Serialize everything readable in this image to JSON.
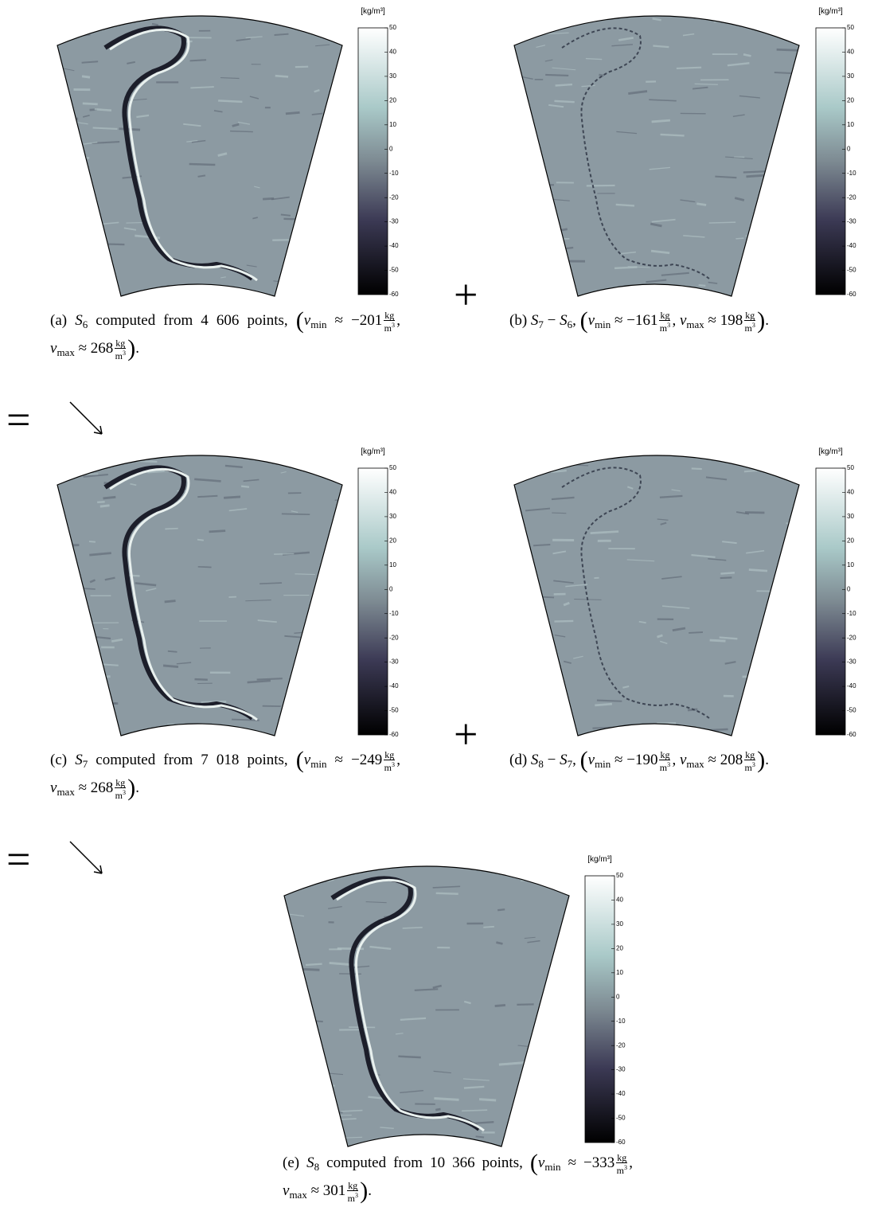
{
  "colorbar": {
    "unit": "[kg/m³]",
    "range": [
      -60,
      50
    ],
    "ticks": [
      50,
      40,
      30,
      20,
      10,
      0,
      -10,
      -20,
      -30,
      -40,
      -50,
      -60
    ]
  },
  "math": {
    "v": "v",
    "min": "min",
    "max": "max",
    "approx": "≈",
    "num": "kg",
    "den": "m",
    "exp": "3",
    "lparen": "(",
    "rparen": ")",
    "comma": ",",
    "period": "."
  },
  "operators": {
    "plus": "+",
    "equals": "="
  },
  "panels": [
    {
      "label": "(a)",
      "lhs": {
        "sym": "S",
        "sub": "6"
      },
      "text": "computed from 4 606 points,",
      "vmin": "−201",
      "vmax": "268"
    },
    {
      "label": "(b)",
      "lhs": {
        "sym": "S",
        "sub": "7"
      },
      "op": "−",
      "rhs": {
        "sym": "S",
        "sub": "6"
      },
      "vmin": "−161",
      "vmax": "198"
    },
    {
      "label": "(c)",
      "lhs": {
        "sym": "S",
        "sub": "7"
      },
      "text": "computed from 7 018 points,",
      "vmin": "−249",
      "vmax": "268"
    },
    {
      "label": "(d)",
      "lhs": {
        "sym": "S",
        "sub": "8"
      },
      "op": "−",
      "rhs": {
        "sym": "S",
        "sub": "7"
      },
      "vmin": "−190",
      "vmax": "208"
    },
    {
      "label": "(e)",
      "lhs": {
        "sym": "S",
        "sub": "8"
      },
      "text": "computed from 10 366 points,",
      "vmin": "−333",
      "vmax": "301"
    }
  ]
}
